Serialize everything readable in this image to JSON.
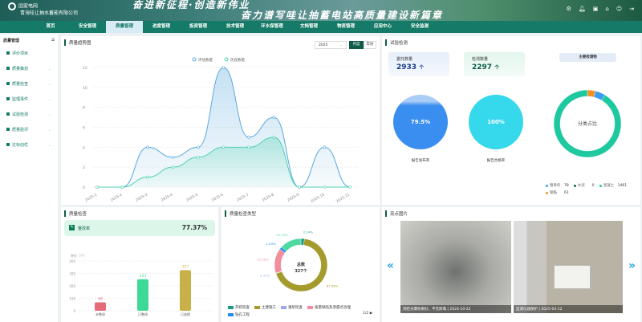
{
  "header": {
    "logo_cn": "国家电网",
    "logo_en": "STATE GRID",
    "company": "青海哇让抽水蓄能有限公司",
    "slogan_line1": "奋进新征程·创造新伟业",
    "slogan_line2": "奋力谱写哇让抽蓄电站高质量建设新篇章",
    "icons": [
      "settings-icon",
      "bell-icon",
      "calendar-icon",
      "home-icon",
      "user-icon",
      "logout-icon"
    ]
  },
  "nav": {
    "items": [
      "首页",
      "安全管理",
      "质量管理",
      "进度管理",
      "投资管理",
      "技术管理",
      "环水保管理",
      "文档管理",
      "物资管理",
      "应用中心",
      "安全监测"
    ],
    "active": 2
  },
  "sidebar": {
    "title": "质量管理",
    "items": [
      "评价项目",
      "质量策划",
      "质量检查",
      "监理事件",
      "试验检测",
      "质量验评",
      "达标创优"
    ]
  },
  "trend": {
    "title": "质量趋势图",
    "year": "2025",
    "btn_month": "月度",
    "btn_year": "年份",
    "accent": "#0d5c48",
    "chart_data": {
      "type": "area",
      "x": [
        "2025-1",
        "2025-2",
        "2025-3",
        "2025-4",
        "2025-5",
        "2025-6",
        "2025-7",
        "2025-8",
        "2025-9",
        "2025-10",
        "2025-11"
      ],
      "ylim": [
        0,
        12
      ],
      "yticks": [
        0,
        2,
        4,
        6,
        8,
        10,
        12
      ],
      "legend_position": "top",
      "series": [
        {
          "name": "评估数量",
          "color": "#5aa9dc",
          "values": [
            0,
            0,
            4,
            3,
            4,
            12,
            5,
            7,
            0,
            4,
            0
          ]
        },
        {
          "name": "优良数量",
          "color": "#4fd1b0",
          "values": [
            0,
            0,
            1,
            2,
            3,
            4,
            4,
            5,
            0,
            0,
            0
          ]
        }
      ]
    }
  },
  "testing": {
    "title": "试验检测",
    "commission_label": "委托数量",
    "commission_value": "2933",
    "commission_unit": "个",
    "test_label": "检测数量",
    "test_value": "2297",
    "test_unit": "个",
    "publish_rate": "79.5%",
    "publish_label": "报告发布率",
    "pass_rate": "100%",
    "pass_label": "报告合格率",
    "main_title": "主要检测物",
    "donut_center": "分类占比",
    "chart_data": {
      "type": "pie",
      "slices": [
        {
          "name": "粗骨料",
          "value": 78,
          "color": "#3a9cf0"
        },
        {
          "name": "水泥",
          "value": 0,
          "color": "#0d6b4f"
        },
        {
          "name": "混凝土",
          "value": 1461,
          "color": "#1ec9a0"
        },
        {
          "name": "钢筋",
          "value": 61,
          "color": "#f39022"
        }
      ]
    }
  },
  "inspection": {
    "title": "质量检查",
    "rate_label": "整改率",
    "rate_value": "77.37%",
    "unit_label": "单位（个）",
    "chart_data": {
      "type": "bar",
      "categories": [
        "未整改",
        "已整改",
        "已逾期"
      ],
      "values": [
        68,
        253,
        327
      ],
      "colors": [
        "#e66a78",
        "#3ed996",
        "#c9b14a"
      ],
      "ylim": [
        0,
        400
      ],
      "yticks": [
        0,
        100,
        200,
        300,
        400
      ]
    }
  },
  "types": {
    "title": "质量检查类型",
    "center_label": "总数",
    "center_value": "327个",
    "pager": "1/2",
    "chart_data": {
      "type": "pie",
      "slices": [
        {
          "name": "开挖检查",
          "value": 2.14,
          "color": "#1f9c80"
        },
        {
          "name": "土建施工",
          "value": 67.58,
          "color": "#a59a2c"
        },
        {
          "name": "灌浆检查",
          "value": 0.31,
          "color": "#9da8f4"
        },
        {
          "name": "质量缺陷及渗漏点治理",
          "value": 15.29,
          "color": "#f28d9e"
        },
        {
          "name": "钻孔工程",
          "value": 1.53,
          "color": "#1d8ef0"
        },
        {
          "name": "",
          "value": 13.15,
          "color": "#4dd9a0"
        }
      ]
    }
  },
  "photos": {
    "title": "亮点图片",
    "items": [
      {
        "caption": "洞挖光爆效果好，平无跨塌 | 2024-10-22"
      },
      {
        "caption": "监测仪器保护 | 2025-03-12"
      }
    ]
  }
}
